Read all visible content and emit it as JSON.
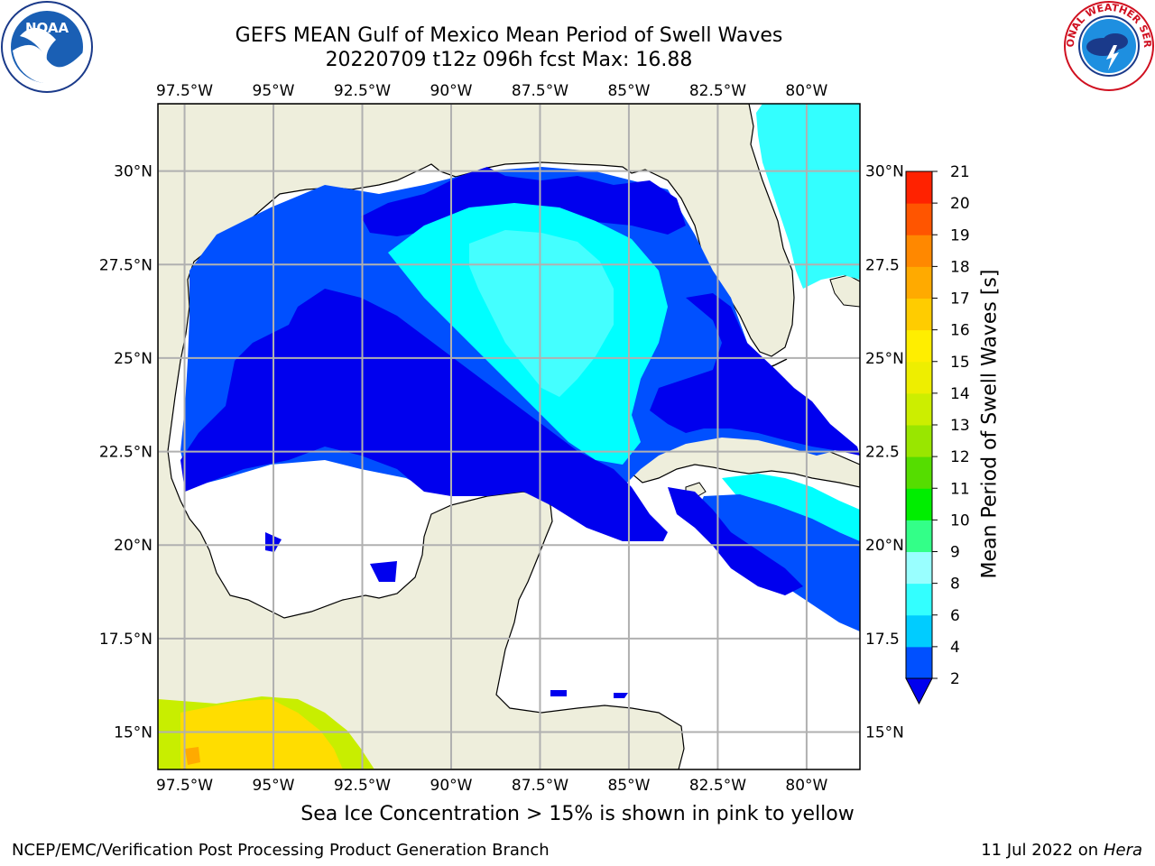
{
  "title_line1": "GEFS MEAN Gulf of Mexico Mean Period of Swell Waves",
  "title_line2": "20220709 t12z 096h fcst   Max: 16.88",
  "note": "Sea Ice Concentration > 15% is shown in pink to yellow",
  "footer_left": "NCEP/EMC/Verification Post Processing Product Generation Branch",
  "footer_date": "11 Jul 2022 on",
  "footer_machine": "Hera",
  "logos": {
    "noaa_text": "NOAA",
    "nws_text": "NATIONAL WEATHER SERVICE"
  },
  "chart_data": {
    "type": "heatmap",
    "lon_ticks": [
      "97.5°W",
      "95°W",
      "92.5°W",
      "90°W",
      "87.5°W",
      "85°W",
      "82.5°W",
      "80°W"
    ],
    "lon_values": [
      -97.5,
      -95,
      -92.5,
      -90,
      -87.5,
      -85,
      -82.5,
      -80
    ],
    "lat_ticks_left": [
      "30°N",
      "27.5°N",
      "25°N",
      "22.5°N",
      "20°N",
      "17.5°N",
      "15°N"
    ],
    "lat_ticks_right": [
      "30°N",
      "27.5",
      "25°N",
      "22.5",
      "20°N",
      "17.5",
      "15°N"
    ],
    "lat_values": [
      30,
      27.5,
      25,
      22.5,
      20,
      17.5,
      15
    ],
    "colorbar": {
      "label": "Mean Period of Swell Waves [s]",
      "ticks": [
        "2",
        "4",
        "6",
        "8",
        "9",
        "10",
        "11",
        "12",
        "13",
        "14",
        "15",
        "16",
        "17",
        "18",
        "19",
        "20",
        "21"
      ],
      "colors": [
        "#0050ff",
        "#00ccff",
        "#33ffff",
        "#99ffff",
        "#33ff88",
        "#00ee00",
        "#55dd00",
        "#99e600",
        "#ccee00",
        "#eeee00",
        "#ffee00",
        "#ffcc00",
        "#ffaa00",
        "#ff8800",
        "#ff5500",
        "#ff2200"
      ],
      "under_color": "#0000ee"
    },
    "grid": true,
    "land_color": "#eeeedc"
  }
}
